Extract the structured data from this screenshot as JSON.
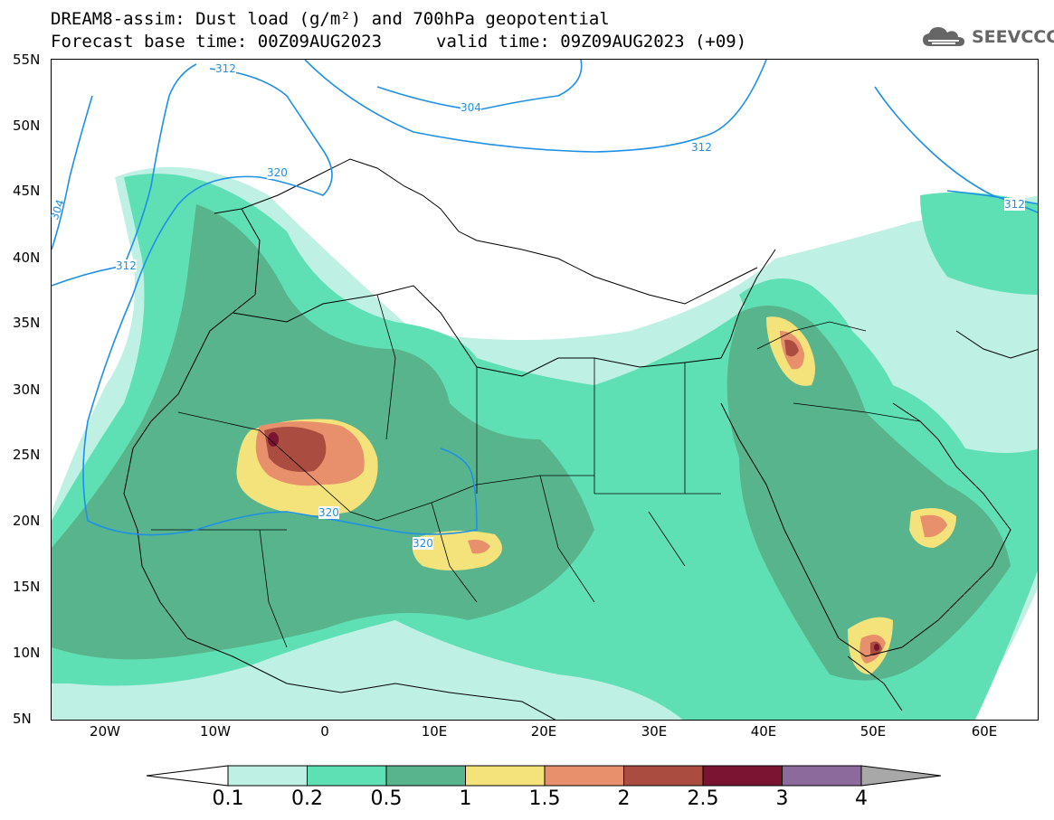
{
  "header": {
    "line1": "DREAM8-assim: Dust load (g/m²) and 700hPa geopotential",
    "line2_base": "Forecast base time: 00Z09AUG2023",
    "line2_valid": "valid time: 09Z09AUG2023 (+09)"
  },
  "logo": {
    "text": "SEEVCCC",
    "icon": "cloud-logo-icon"
  },
  "axes": {
    "lat_labels": [
      "55N",
      "50N",
      "45N",
      "40N",
      "35N",
      "30N",
      "25N",
      "20N",
      "15N",
      "10N",
      "5N"
    ],
    "lon_labels": [
      "20W",
      "10W",
      "0",
      "10E",
      "20E",
      "30E",
      "40E",
      "50E",
      "60E"
    ]
  },
  "contours": {
    "labels": [
      "312",
      "304",
      "320",
      "312",
      "320",
      "320",
      "312",
      "304",
      "312"
    ]
  },
  "colorbar": {
    "labels": [
      "0.1",
      "0.2",
      "0.5",
      "1",
      "1.5",
      "2",
      "2.5",
      "3",
      "4"
    ],
    "colors": [
      "#ffffff",
      "#bff0e4",
      "#5fe0b4",
      "#58b48c",
      "#f4e27a",
      "#e8906c",
      "#aa4c40",
      "#7a1432",
      "#8c6a9c",
      "#a8a8a8"
    ]
  },
  "chart_data": {
    "type": "heatmap",
    "title": "DREAM8-assim: Dust load (g/m²) and 700hPa geopotential",
    "lat_range": [
      "5N",
      "55N"
    ],
    "lon_range": [
      "25W",
      "65E"
    ],
    "levels": [
      0.1,
      0.2,
      0.5,
      1,
      1.5,
      2,
      2.5,
      3,
      4
    ],
    "geopotential_contours": [
      304,
      312,
      320
    ]
  }
}
